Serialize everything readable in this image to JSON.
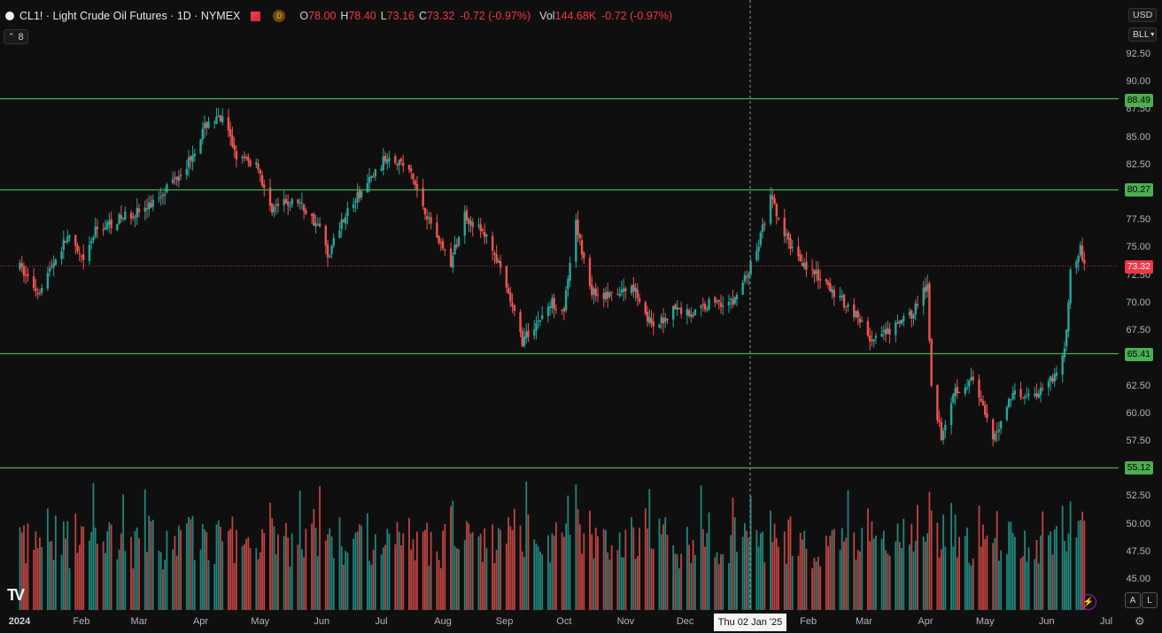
{
  "legend": {
    "title": "CL1! · Light Crude Oil Futures · 1D · NYMEX",
    "d_badge": "D",
    "o_label": "O",
    "o_value": "78.00",
    "h_label": "H",
    "h_value": "78.40",
    "l_label": "L",
    "l_value": "73.16",
    "c_label": "C",
    "c_value": "73.32",
    "change": "-0.72 (-0.97%)",
    "vol_label": "Vol",
    "vol_value": "144.68K",
    "vol_change": "-0.72 (-0.97%)"
  },
  "collapse_count": "8",
  "scale_buttons": {
    "currency": "USD",
    "unit": "BLL"
  },
  "price_tags": {
    "r1": "88.49",
    "r2": "80.27",
    "current": "73.32",
    "s1": "65.41",
    "s2": "55.12"
  },
  "y_ticks": [
    "92.50",
    "90.00",
    "87.50",
    "85.00",
    "82.50",
    "80.00",
    "77.50",
    "75.00",
    "72.50",
    "70.00",
    "67.50",
    "65.00",
    "62.50",
    "60.00",
    "57.50",
    "55.00",
    "52.50",
    "50.00",
    "47.50",
    "45.00"
  ],
  "x_ticks": [
    "2024",
    "Feb",
    "Mar",
    "Apr",
    "May",
    "Jun",
    "Jul",
    "Aug",
    "Sep",
    "Oct",
    "Nov",
    "Dec",
    "Feb",
    "Mar",
    "Apr",
    "May",
    "Jun",
    "Jul"
  ],
  "crosshair_date": "Thu 02 Jan '25",
  "bottom_buttons": {
    "auto": "A",
    "log": "L"
  },
  "colors": {
    "up": "#26a69a",
    "down": "#ef5350",
    "level": "#4caf50",
    "current": "#f23645"
  },
  "chart_data": {
    "type": "candlestick",
    "symbol": "CL1!",
    "x_range": [
      "2024-01-01",
      "2025-06-20"
    ],
    "ylim": [
      45.0,
      92.5
    ],
    "horizontal_levels": [
      88.49,
      80.27,
      65.41,
      55.12
    ],
    "current_price": 73.32,
    "crosshair_x": "2025-01-02",
    "price_path": [
      [
        "2024-01-01",
        73.2
      ],
      [
        "2024-01-10",
        71.0
      ],
      [
        "2024-01-25",
        76.0
      ],
      [
        "2024-02-02",
        73.5
      ],
      [
        "2024-02-08",
        76.5
      ],
      [
        "2024-02-25",
        78.0
      ],
      [
        "2024-03-05",
        78.5
      ],
      [
        "2024-03-15",
        80.5
      ],
      [
        "2024-03-25",
        82.5
      ],
      [
        "2024-04-05",
        86.5
      ],
      [
        "2024-04-12",
        86.5
      ],
      [
        "2024-04-20",
        83.0
      ],
      [
        "2024-04-30",
        82.5
      ],
      [
        "2024-05-05",
        78.5
      ],
      [
        "2024-05-20",
        79.2
      ],
      [
        "2024-06-01",
        76.5
      ],
      [
        "2024-06-04",
        74.2
      ],
      [
        "2024-06-12",
        77.8
      ],
      [
        "2024-06-25",
        81.0
      ],
      [
        "2024-07-05",
        83.5
      ],
      [
        "2024-07-15",
        82.0
      ],
      [
        "2024-07-25",
        77.5
      ],
      [
        "2024-08-05",
        73.5
      ],
      [
        "2024-08-12",
        78.0
      ],
      [
        "2024-08-25",
        75.5
      ],
      [
        "2024-09-05",
        69.5
      ],
      [
        "2024-09-10",
        66.5
      ],
      [
        "2024-09-25",
        70.0
      ],
      [
        "2024-10-01",
        69.5
      ],
      [
        "2024-10-07",
        77.0
      ],
      [
        "2024-10-15",
        71.0
      ],
      [
        "2024-10-25",
        70.5
      ],
      [
        "2024-11-05",
        71.5
      ],
      [
        "2024-11-15",
        67.5
      ],
      [
        "2024-11-25",
        69.5
      ],
      [
        "2024-12-05",
        69.0
      ],
      [
        "2024-12-15",
        70.2
      ],
      [
        "2024-12-25",
        70.0
      ],
      [
        "2025-01-05",
        74.0
      ],
      [
        "2025-01-13",
        79.5
      ],
      [
        "2025-01-20",
        76.0
      ],
      [
        "2025-01-30",
        73.5
      ],
      [
        "2025-02-10",
        71.5
      ],
      [
        "2025-02-25",
        69.0
      ],
      [
        "2025-03-05",
        66.5
      ],
      [
        "2025-03-15",
        67.5
      ],
      [
        "2025-03-25",
        69.0
      ],
      [
        "2025-04-02",
        71.5
      ],
      [
        "2025-04-04",
        62.5
      ],
      [
        "2025-04-09",
        58.0
      ],
      [
        "2025-04-15",
        62.0
      ],
      [
        "2025-04-25",
        63.0
      ],
      [
        "2025-05-05",
        57.5
      ],
      [
        "2025-05-15",
        62.0
      ],
      [
        "2025-05-25",
        61.5
      ],
      [
        "2025-06-05",
        63.5
      ],
      [
        "2025-06-10",
        65.5
      ],
      [
        "2025-06-13",
        72.5
      ],
      [
        "2025-06-18",
        75.0
      ],
      [
        "2025-06-20",
        73.3
      ]
    ]
  }
}
